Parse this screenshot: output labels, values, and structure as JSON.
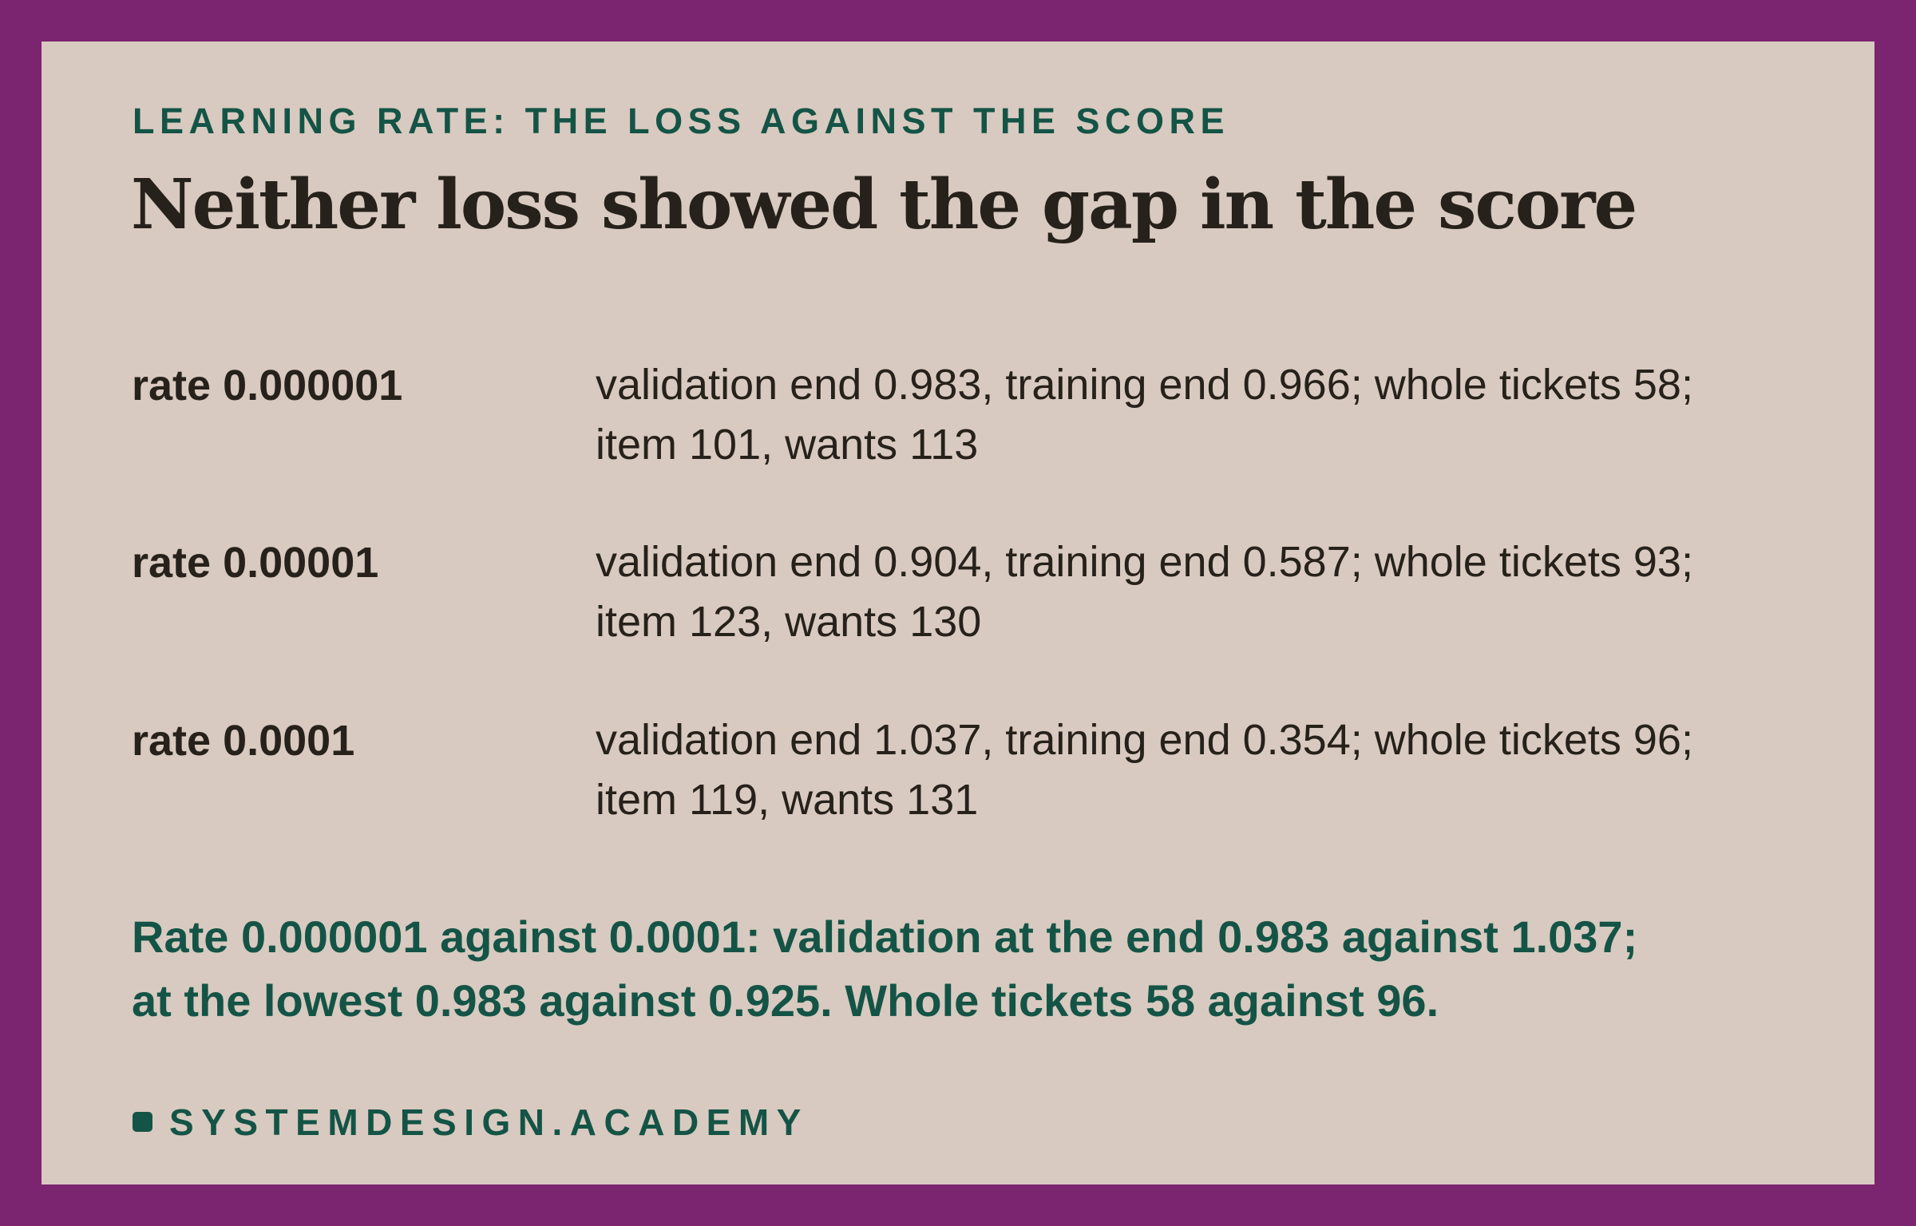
{
  "card": {
    "kicker": "LEARNING RATE: THE LOSS AGAINST THE SCORE",
    "headline": "Neither loss showed the gap in the score",
    "rows": [
      {
        "label": "rate 0.000001",
        "line1": "validation end 0.983, training end 0.966; whole tickets 58;",
        "line2": "item 101, wants 113"
      },
      {
        "label": "rate 0.00001",
        "line1": "validation end 0.904, training end 0.587; whole tickets 93;",
        "line2": "item 123, wants 130"
      },
      {
        "label": "rate 0.0001",
        "line1": "validation end 1.037, training end 0.354; whole tickets 96;",
        "line2": "item 119, wants 131"
      }
    ],
    "summary": {
      "line1": "Rate 0.000001 against 0.0001: validation at the end 0.983 against 1.037;",
      "line2": "at the lowest 0.983 against 0.925. Whole tickets 58 against 96."
    },
    "brand": "SYSTEMDESIGN.ACADEMY"
  },
  "colors": {
    "frame": "#7b246f",
    "card": "#d8cac0",
    "accent": "#145446",
    "text": "#27211b"
  }
}
